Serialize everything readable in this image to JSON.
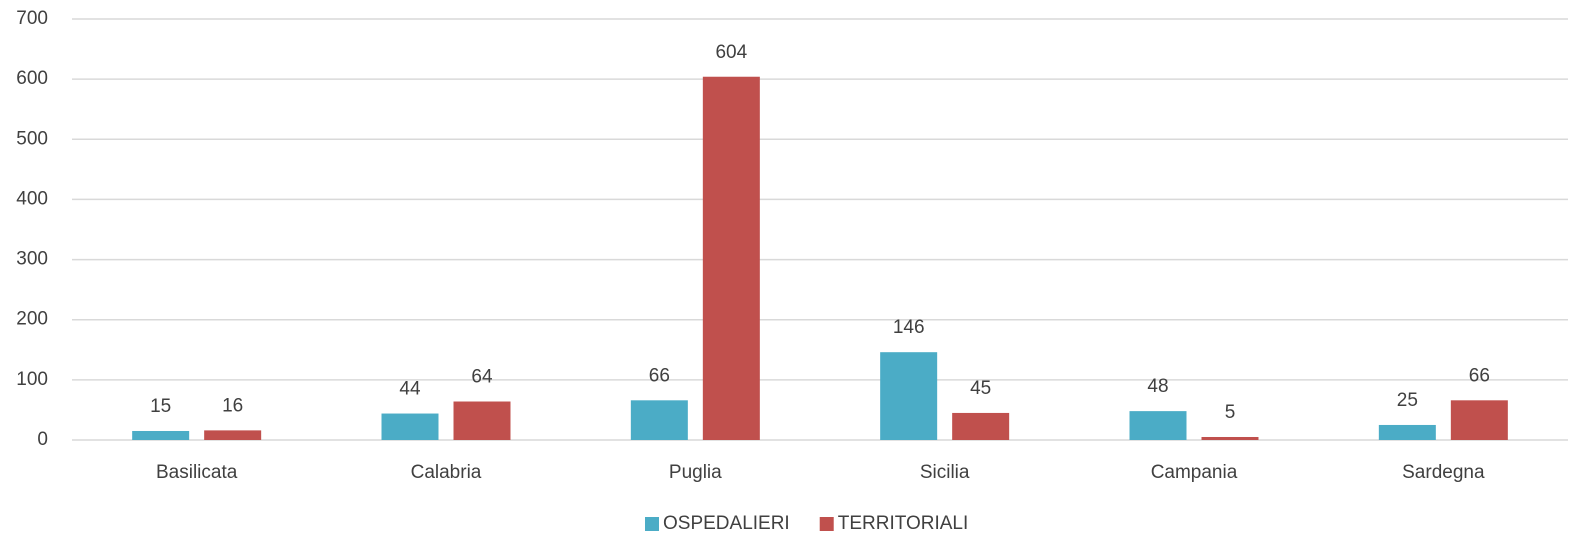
{
  "chart_data": {
    "type": "bar",
    "categories": [
      "Basilicata",
      "Calabria",
      "Puglia",
      "Sicilia",
      "Campania",
      "Sardegna"
    ],
    "series": [
      {
        "name": "OSPEDALIERI",
        "color": "#4bacc6",
        "values": [
          15,
          44,
          66,
          146,
          48,
          25
        ]
      },
      {
        "name": "TERRITORIALI",
        "color": "#c0504d",
        "values": [
          16,
          64,
          604,
          45,
          5,
          66
        ]
      }
    ],
    "ylim": [
      0,
      700
    ],
    "yticks": [
      0,
      100,
      200,
      300,
      400,
      500,
      600,
      700
    ],
    "grid": true,
    "legend": "bottom"
  }
}
